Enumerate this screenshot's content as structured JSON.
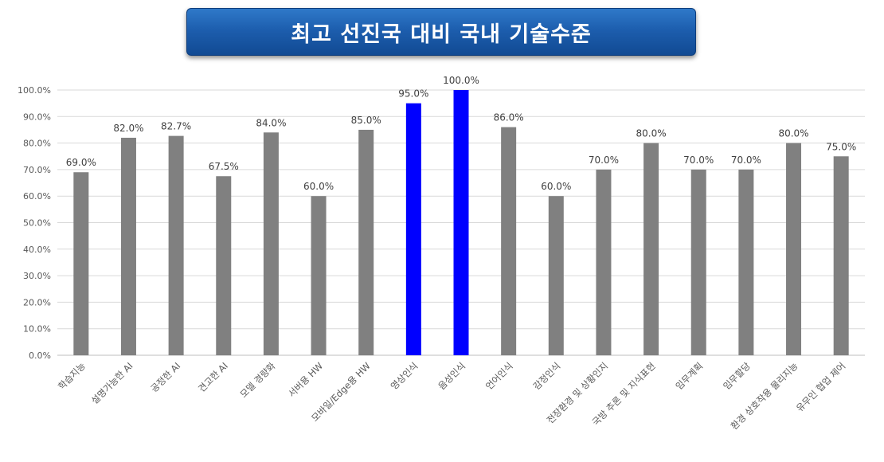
{
  "title": "최고 선진국 대비 국내 기술수준",
  "colors": {
    "default_bar": "#808080",
    "highlight_bar": "#0000ff",
    "grid": "#d9d9d9"
  },
  "chart_data": {
    "type": "bar",
    "title": "최고 선진국 대비 국내 기술수준",
    "xlabel": "",
    "ylabel": "",
    "ylim": [
      0,
      100
    ],
    "yticks": [
      0,
      10,
      20,
      30,
      40,
      50,
      60,
      70,
      80,
      90,
      100
    ],
    "ytick_labels": [
      "0.0%",
      "10.0%",
      "20.0%",
      "30.0%",
      "40.0%",
      "50.0%",
      "60.0%",
      "70.0%",
      "80.0%",
      "90.0%",
      "100.0%"
    ],
    "grid": true,
    "categories": [
      "학습지능",
      "설명가능한 AI",
      "공정한 AI",
      "견고한 AI",
      "모델 경량화",
      "서버용 HW",
      "모바일/Edge용 HW",
      "영상인식",
      "음성인식",
      "언어인식",
      "감정인식",
      "전장환경 및 상황인지",
      "국방 추론 및 지식표현",
      "임무계획",
      "임무할당",
      "환경 상호작용 물리지능",
      "유무인 협업 제어"
    ],
    "values": [
      69.0,
      82.0,
      82.7,
      67.5,
      84.0,
      60.0,
      85.0,
      95.0,
      100.0,
      86.0,
      60.0,
      70.0,
      80.0,
      70.0,
      70.0,
      80.0,
      75.0
    ],
    "value_labels": [
      "69.0%",
      "82.0%",
      "82.7%",
      "67.5%",
      "84.0%",
      "60.0%",
      "85.0%",
      "95.0%",
      "100.0%",
      "86.0%",
      "60.0%",
      "70.0%",
      "80.0%",
      "70.0%",
      "70.0%",
      "80.0%",
      "75.0%"
    ],
    "highlighted": [
      "영상인식",
      "음성인식"
    ]
  }
}
